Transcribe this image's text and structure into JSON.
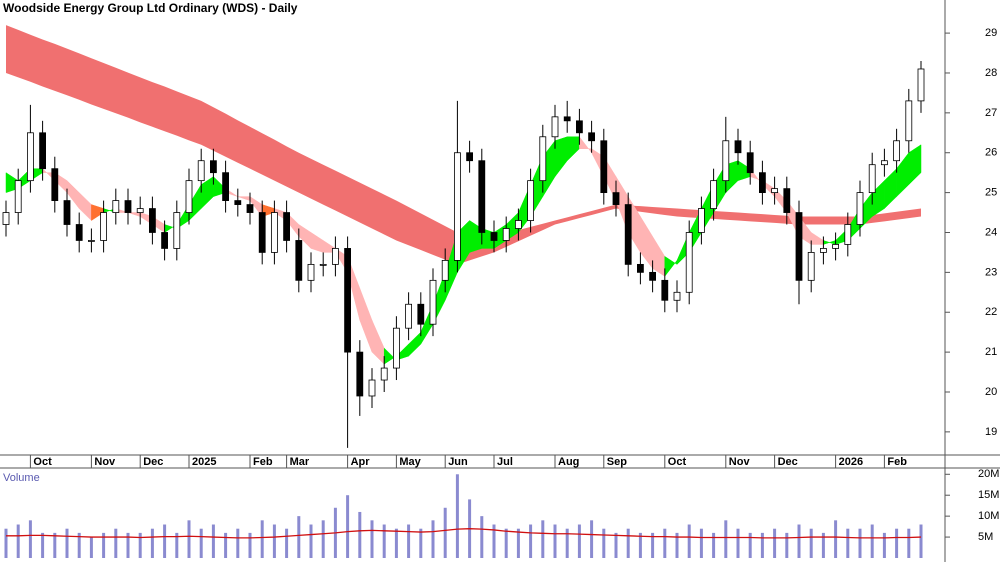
{
  "chart_data": [
    {
      "type": "candlestick",
      "title": "Woodside Energy Group Ltd Ordinary (WDS) - Daily",
      "categories": [
        null,
        null,
        "Oct",
        null,
        null,
        null,
        null,
        "Nov",
        null,
        null,
        null,
        "Dec",
        null,
        null,
        null,
        "2025",
        null,
        null,
        null,
        null,
        "Feb",
        null,
        null,
        "Mar",
        null,
        null,
        null,
        null,
        "Apr",
        null,
        null,
        null,
        "May",
        null,
        null,
        null,
        "Jun",
        null,
        null,
        null,
        "Jul",
        null,
        null,
        null,
        null,
        "Aug",
        null,
        null,
        null,
        "Sep",
        null,
        null,
        null,
        null,
        "Oct",
        null,
        null,
        null,
        null,
        "Nov",
        null,
        null,
        null,
        "Dec",
        null,
        null,
        null,
        null,
        "2026",
        null,
        null,
        null,
        "Feb",
        null,
        null,
        null
      ],
      "open": [
        24.2,
        24.5,
        25.3,
        26.5,
        25.6,
        24.8,
        24.2,
        23.8,
        23.8,
        24.5,
        24.8,
        24.5,
        24.6,
        24.0,
        23.6,
        24.5,
        25.3,
        25.8,
        25.5,
        24.8,
        24.7,
        24.5,
        23.5,
        24.5,
        23.8,
        22.8,
        23.2,
        23.2,
        23.6,
        21.0,
        19.9,
        20.3,
        20.6,
        21.6,
        22.2,
        21.7,
        22.8,
        23.3,
        26.0,
        25.8,
        24.0,
        23.8,
        24.1,
        24.3,
        25.3,
        26.4,
        26.9,
        26.8,
        26.5,
        26.3,
        25.0,
        24.7,
        23.2,
        23.0,
        22.8,
        22.3,
        22.5,
        24.0,
        24.6,
        25.3,
        26.3,
        26.0,
        25.5,
        25.0,
        25.1,
        24.5,
        22.8,
        23.5,
        23.6,
        23.7,
        24.2,
        25.0,
        25.7,
        25.8,
        26.3,
        27.3
      ],
      "high": [
        24.8,
        25.6,
        27.2,
        26.8,
        25.9,
        25.1,
        24.5,
        24.1,
        24.8,
        25.1,
        25.1,
        24.9,
        24.9,
        24.3,
        24.8,
        25.6,
        26.1,
        26.1,
        25.8,
        25.1,
        25.0,
        24.8,
        24.8,
        24.8,
        24.1,
        23.5,
        23.5,
        23.9,
        23.9,
        21.3,
        20.6,
        20.9,
        21.9,
        22.5,
        22.5,
        23.1,
        23.6,
        27.3,
        26.3,
        26.1,
        24.3,
        24.4,
        24.6,
        25.6,
        26.7,
        27.2,
        27.3,
        27.1,
        26.8,
        26.6,
        25.3,
        25.0,
        23.5,
        23.3,
        23.1,
        22.8,
        24.3,
        24.9,
        25.6,
        26.9,
        26.6,
        26.3,
        25.8,
        25.4,
        25.4,
        24.8,
        23.8,
        23.9,
        24.0,
        24.5,
        25.3,
        26.0,
        26.1,
        26.6,
        27.6,
        28.3
      ],
      "low": [
        23.9,
        24.2,
        25.0,
        25.3,
        24.5,
        23.9,
        23.5,
        23.5,
        23.5,
        24.2,
        24.2,
        24.2,
        23.7,
        23.3,
        23.3,
        24.2,
        25.0,
        25.2,
        24.5,
        24.4,
        24.2,
        23.2,
        23.2,
        23.5,
        22.5,
        22.5,
        22.9,
        22.9,
        18.6,
        19.4,
        19.6,
        20.0,
        20.3,
        21.3,
        21.4,
        21.4,
        22.5,
        23.0,
        25.5,
        23.7,
        23.5,
        23.5,
        23.8,
        24.0,
        25.0,
        26.1,
        26.5,
        26.2,
        26.0,
        24.7,
        24.4,
        22.9,
        22.7,
        22.5,
        22.0,
        22.0,
        22.2,
        23.7,
        24.3,
        25.0,
        25.7,
        25.2,
        24.7,
        24.7,
        24.2,
        22.2,
        22.5,
        23.2,
        23.3,
        23.4,
        23.9,
        24.7,
        25.4,
        25.5,
        26.0,
        27.0
      ],
      "close": [
        24.5,
        25.3,
        26.5,
        25.6,
        24.8,
        24.2,
        23.8,
        23.8,
        24.5,
        24.8,
        24.5,
        24.6,
        24.0,
        23.6,
        24.5,
        25.3,
        25.8,
        25.5,
        24.8,
        24.7,
        24.5,
        23.5,
        24.5,
        23.8,
        22.8,
        23.2,
        23.2,
        23.6,
        21.0,
        19.9,
        20.3,
        20.6,
        21.6,
        22.2,
        21.7,
        22.8,
        23.3,
        26.0,
        25.8,
        24.0,
        23.8,
        24.1,
        24.3,
        25.3,
        26.4,
        26.9,
        26.8,
        26.5,
        26.3,
        25.0,
        24.7,
        23.2,
        23.0,
        22.8,
        22.3,
        22.5,
        24.0,
        24.6,
        25.3,
        26.3,
        26.0,
        25.5,
        25.0,
        25.1,
        24.5,
        22.8,
        23.5,
        23.6,
        23.7,
        24.2,
        25.0,
        25.7,
        25.8,
        26.3,
        27.3,
        28.1
      ],
      "long_band": {
        "color": "#f07070",
        "upper": [
          29.2,
          29.08,
          28.96,
          28.84,
          28.73,
          28.61,
          28.49,
          28.37,
          28.25,
          28.13,
          28.01,
          27.89,
          27.77,
          27.66,
          27.54,
          27.42,
          27.3,
          27.14,
          26.98,
          26.81,
          26.65,
          26.49,
          26.33,
          26.16,
          26.0,
          25.85,
          25.7,
          25.55,
          25.4,
          25.25,
          25.1,
          24.95,
          24.8,
          24.64,
          24.48,
          24.32,
          24.16,
          24.0,
          23.97,
          23.93,
          23.9,
          23.98,
          24.06,
          24.14,
          24.22,
          24.3,
          24.38,
          24.46,
          24.54,
          24.62,
          24.7,
          24.68,
          24.66,
          24.64,
          24.62,
          24.6,
          24.58,
          24.56,
          24.54,
          24.52,
          24.5,
          24.48,
          24.46,
          24.44,
          24.42,
          24.4,
          24.4,
          24.4,
          24.4,
          24.4,
          24.4,
          24.44,
          24.48,
          24.52,
          24.56,
          24.6
        ],
        "lower": [
          28.0,
          27.89,
          27.78,
          27.66,
          27.55,
          27.44,
          27.33,
          27.21,
          27.1,
          26.99,
          26.88,
          26.76,
          26.65,
          26.54,
          26.43,
          26.31,
          26.2,
          26.05,
          25.9,
          25.75,
          25.6,
          25.45,
          25.3,
          25.15,
          25.0,
          24.85,
          24.7,
          24.55,
          24.4,
          24.25,
          24.1,
          23.95,
          23.8,
          23.68,
          23.56,
          23.44,
          23.32,
          23.2,
          23.3,
          23.4,
          23.5,
          23.64,
          23.78,
          23.92,
          24.06,
          24.2,
          24.28,
          24.36,
          24.44,
          24.52,
          24.6,
          24.56,
          24.52,
          24.48,
          24.44,
          24.4,
          24.38,
          24.36,
          24.34,
          24.32,
          24.3,
          24.28,
          24.26,
          24.24,
          24.22,
          24.2,
          24.2,
          24.2,
          24.2,
          24.2,
          24.2,
          24.24,
          24.28,
          24.32,
          24.36,
          24.4
        ]
      },
      "short_band": {
        "rising_color": "#00ee00",
        "turning_color": "#ff7030",
        "falling_color": "#ffb4b4",
        "fast": [
          25.5,
          25.3,
          25.6,
          25.6,
          25.3,
          25.0,
          24.6,
          24.3,
          24.5,
          24.6,
          24.5,
          24.4,
          24.2,
          24.0,
          24.2,
          24.7,
          25.2,
          25.4,
          25.1,
          24.9,
          24.8,
          24.4,
          24.5,
          24.3,
          23.9,
          23.6,
          23.5,
          23.5,
          23.0,
          21.8,
          21.0,
          20.7,
          20.9,
          21.2,
          21.5,
          22.2,
          23.0,
          24.0,
          24.3,
          24.1,
          24.0,
          24.2,
          24.5,
          25.2,
          25.9,
          26.3,
          26.4,
          26.4,
          26.0,
          25.4,
          24.8,
          24.0,
          23.5,
          23.1,
          22.9,
          23.3,
          24.0,
          24.6,
          25.2,
          25.7,
          25.8,
          25.6,
          25.2,
          24.9,
          24.5,
          23.9,
          23.7,
          23.7,
          23.8,
          24.1,
          24.6,
          25.0,
          25.3,
          25.6,
          26.0,
          26.2
        ],
        "slow": [
          25.0,
          25.1,
          25.3,
          25.5,
          25.5,
          25.3,
          25.0,
          24.7,
          24.6,
          24.5,
          24.5,
          24.5,
          24.4,
          24.2,
          24.1,
          24.3,
          24.6,
          24.9,
          25.0,
          24.9,
          24.9,
          24.7,
          24.6,
          24.5,
          24.2,
          24.0,
          23.8,
          23.6,
          23.4,
          22.6,
          21.8,
          21.1,
          20.8,
          20.9,
          21.2,
          21.7,
          22.3,
          23.0,
          23.5,
          23.6,
          23.6,
          23.8,
          24.0,
          24.4,
          24.9,
          25.4,
          25.8,
          26.1,
          26.1,
          25.9,
          25.4,
          24.9,
          24.4,
          23.9,
          23.4,
          23.2,
          23.5,
          24.0,
          24.5,
          25.0,
          25.3,
          25.4,
          25.3,
          25.1,
          24.8,
          24.4,
          24.0,
          23.8,
          23.7,
          23.8,
          24.1,
          24.4,
          24.6,
          24.9,
          25.2,
          25.5
        ]
      },
      "ylim": [
        18.42,
        29.83
      ],
      "yticks": [
        19,
        20,
        21,
        22,
        23,
        24,
        25,
        26,
        27,
        28,
        29
      ]
    },
    {
      "type": "bar",
      "title": "Volume",
      "color": "#8a8ad0",
      "values": [
        7,
        8,
        9,
        6,
        6,
        7,
        6,
        5,
        6,
        7,
        6,
        6,
        7,
        8,
        6,
        9,
        7,
        8,
        6,
        7,
        6,
        9,
        8,
        7,
        10,
        8,
        9,
        12,
        15,
        11,
        9,
        8,
        7,
        8,
        7,
        9,
        12,
        20,
        14,
        10,
        8,
        7,
        7,
        8,
        9,
        8,
        7,
        8,
        9,
        7,
        6,
        7,
        6,
        6,
        7,
        6,
        8,
        7,
        6,
        9,
        7,
        6,
        6,
        7,
        6,
        8,
        7,
        6,
        9,
        7,
        7,
        8,
        6,
        7,
        7,
        8
      ],
      "ma": {
        "color": "#d01010",
        "values": [
          5.3,
          5.3,
          5.4,
          5.4,
          5.3,
          5.2,
          5.1,
          5.0,
          5.0,
          5.0,
          5.0,
          4.9,
          5.0,
          5.1,
          5.1,
          5.2,
          5.1,
          5.0,
          4.9,
          4.8,
          4.8,
          4.9,
          5.0,
          5.2,
          5.4,
          5.6,
          5.8,
          6.0,
          6.3,
          6.5,
          6.6,
          6.5,
          6.4,
          6.3,
          6.2,
          6.3,
          6.6,
          6.9,
          7.0,
          6.9,
          6.7,
          6.4,
          6.2,
          6.0,
          5.9,
          5.8,
          5.8,
          5.7,
          5.6,
          5.5,
          5.4,
          5.3,
          5.2,
          5.1,
          5.1,
          5.0,
          5.0,
          4.9,
          4.9,
          4.9,
          4.9,
          4.9,
          4.8,
          4.8,
          4.8,
          4.9,
          5.0,
          5.0,
          5.0,
          4.9,
          4.8,
          4.8,
          4.8,
          4.9,
          4.9,
          5.0
        ]
      },
      "ylim": [
        0,
        21.5
      ],
      "yticks": [
        {
          "value": 5,
          "label": "5M"
        },
        {
          "value": 10,
          "label": "10M"
        },
        {
          "value": 15,
          "label": "15M"
        },
        {
          "value": 20,
          "label": "20M"
        }
      ]
    }
  ]
}
